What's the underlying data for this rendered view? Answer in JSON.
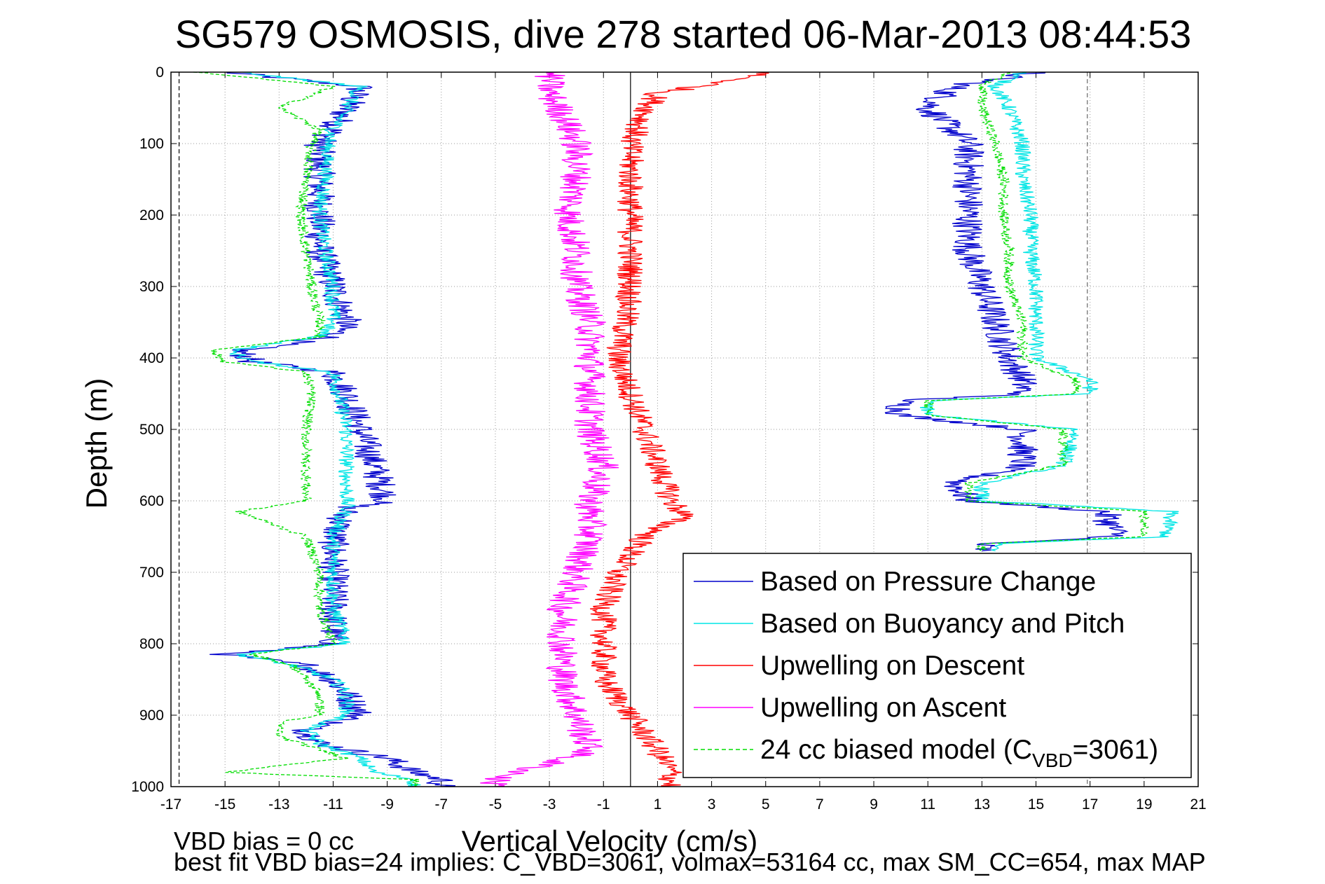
{
  "chart_data": {
    "type": "line",
    "title": "SG579 OSMOSIS, dive 278 started 06-Mar-2013 08:44:53",
    "xlabel": "Vertical Velocity (cm/s)",
    "ylabel": "Depth (m)",
    "xlim": [
      -17,
      21
    ],
    "ylim": [
      0,
      1000
    ],
    "y_reversed": true,
    "grid": true,
    "legend_position": "lower-right",
    "x_ticks": [
      "-17",
      "-15",
      "-13",
      "-11",
      "-9",
      "-7",
      "-5",
      "-3",
      "-1",
      "1",
      "3",
      "5",
      "7",
      "9",
      "11",
      "13",
      "15",
      "17",
      "19",
      "21"
    ],
    "y_ticks": [
      "0",
      "100",
      "200",
      "300",
      "400",
      "500",
      "600",
      "700",
      "800",
      "900",
      "1000"
    ],
    "reference_lines": [
      {
        "x": -16.7,
        "style": "dashed",
        "color": "#000000"
      },
      {
        "x": 16.9,
        "style": "dashed",
        "color": "#666666"
      },
      {
        "x": 0,
        "style": "solid",
        "color": "#000000"
      }
    ],
    "series": [
      {
        "name": "Based on Pressure Change",
        "color": "#0000cc",
        "style": "solid",
        "descent": {
          "depth": [
            0,
            20,
            50,
            80,
            100,
            150,
            200,
            250,
            300,
            350,
            370,
            390,
            405,
            420,
            450,
            500,
            550,
            600,
            610,
            650,
            700,
            750,
            800,
            815,
            830,
            850,
            870,
            900,
            920,
            940,
            960,
            980,
            990,
            1000
          ],
          "value": [
            -15,
            -10,
            -10.5,
            -11,
            -11.5,
            -11.5,
            -11.5,
            -11.5,
            -11,
            -10.5,
            -11,
            -14.5,
            -14,
            -11,
            -10.5,
            -10,
            -9.5,
            -9,
            -10.5,
            -11,
            -11,
            -11,
            -11,
            -15,
            -12,
            -11,
            -10.5,
            -10,
            -12,
            -11.5,
            -9,
            -8,
            -7,
            -7
          ],
          "jitter": 0.6
        },
        "ascent": {
          "depth": [
            0,
            20,
            50,
            100,
            150,
            200,
            250,
            300,
            350,
            400,
            430,
            450,
            460,
            480,
            500,
            550,
            575,
            600,
            615,
            650,
            660,
            670
          ],
          "value": [
            15,
            12,
            11,
            12.5,
            12.5,
            12.5,
            12.5,
            13,
            13.5,
            14,
            14.5,
            14.5,
            10,
            10,
            14.5,
            14.5,
            12,
            12.5,
            17.5,
            18,
            13,
            13
          ],
          "jitter": 0.6
        }
      },
      {
        "name": "Based on Buoyancy and Pitch",
        "color": "#00e5e5",
        "style": "solid",
        "descent": {
          "depth": [
            0,
            20,
            50,
            80,
            100,
            150,
            200,
            250,
            300,
            350,
            370,
            390,
            405,
            420,
            450,
            500,
            550,
            600,
            610,
            650,
            700,
            750,
            800,
            815,
            830,
            850,
            870,
            900,
            920,
            940,
            960,
            980,
            990,
            1000
          ],
          "value": [
            -14.5,
            -10,
            -10.5,
            -11,
            -11.2,
            -11.3,
            -11.5,
            -11.3,
            -11,
            -11,
            -11.5,
            -14.8,
            -14,
            -11,
            -10.8,
            -10.5,
            -10.5,
            -10.5,
            -10.5,
            -11,
            -11,
            -11,
            -10.5,
            -14.5,
            -12.5,
            -11,
            -10.5,
            -10.5,
            -12,
            -11.5,
            -10,
            -9.5,
            -8,
            -8
          ],
          "jitter": 0.3
        },
        "ascent": {
          "depth": [
            0,
            20,
            50,
            100,
            150,
            200,
            250,
            300,
            350,
            400,
            430,
            450,
            460,
            480,
            500,
            550,
            575,
            600,
            615,
            650,
            660,
            670
          ],
          "value": [
            14.5,
            13.5,
            14,
            14.5,
            14.5,
            14.8,
            14.8,
            15,
            15,
            15,
            17,
            17,
            11,
            11,
            16.5,
            16,
            13,
            13,
            20,
            19.8,
            13.5,
            13.5
          ],
          "jitter": 0.3
        }
      },
      {
        "name": "Upwelling on Descent",
        "color": "#ff0000",
        "style": "solid",
        "descent": {
          "depth": [
            0,
            10,
            30,
            60,
            100,
            150,
            200,
            250,
            300,
            350,
            400,
            450,
            500,
            550,
            600,
            620,
            650,
            700,
            750,
            800,
            850,
            900,
            950,
            980,
            1000
          ],
          "value": [
            5,
            4,
            1,
            0.5,
            0,
            0,
            0,
            0,
            0,
            -0.2,
            -0.5,
            0,
            0.5,
            1,
            1.5,
            2,
            0.5,
            -0.5,
            -1,
            -1,
            -1,
            0,
            1,
            1.5,
            1.5
          ],
          "jitter": 0.5
        }
      },
      {
        "name": "Upwelling on Ascent",
        "color": "#ff00ff",
        "style": "solid",
        "descent": {
          "depth": [
            0,
            30,
            60,
            100,
            150,
            200,
            250,
            300,
            350,
            400,
            450,
            500,
            550,
            600,
            650,
            700,
            750,
            800,
            850,
            900,
            950,
            990,
            1000
          ],
          "value": [
            -3,
            -3,
            -2.5,
            -2,
            -2,
            -2.3,
            -2,
            -2,
            -1.5,
            -1.5,
            -1.5,
            -1.5,
            -1,
            -1.5,
            -1.5,
            -2,
            -2.5,
            -2.5,
            -2.5,
            -2,
            -1.5,
            -5,
            -5
          ],
          "jitter": 0.6
        }
      },
      {
        "name": "24 cc biased model (C_VBD=3061)",
        "color": "#00dd00",
        "style": "dashed",
        "descent": {
          "depth": [
            0,
            20,
            50,
            80,
            100,
            150,
            200,
            250,
            300,
            350,
            370,
            390,
            405,
            420,
            450,
            500,
            550,
            600,
            615,
            650,
            700,
            750,
            800,
            815,
            830,
            850,
            870,
            900,
            910,
            930,
            960,
            980,
            990,
            1000
          ],
          "value": [
            -16,
            -11,
            -13,
            -11.5,
            -11.8,
            -12,
            -12.2,
            -12,
            -11.8,
            -11.5,
            -11.5,
            -15.5,
            -15,
            -12,
            -11.8,
            -12,
            -12,
            -12,
            -14.5,
            -12,
            -11.5,
            -11.5,
            -11,
            -14,
            -12.5,
            -12,
            -11.5,
            -11.5,
            -13,
            -13,
            -10.5,
            -15,
            -8,
            -8
          ],
          "jitter": 0.2
        },
        "ascent": {
          "depth": [
            0,
            20,
            50,
            100,
            150,
            200,
            250,
            300,
            350,
            400,
            430,
            450,
            460,
            480,
            500,
            550,
            575,
            600,
            615,
            650,
            660,
            670
          ],
          "value": [
            14,
            13,
            13,
            13.5,
            13.8,
            13.8,
            14,
            14,
            14.5,
            14.5,
            16.5,
            16.5,
            11,
            11,
            16,
            16,
            12.5,
            12.5,
            19,
            19,
            13,
            13
          ],
          "jitter": 0.2
        }
      }
    ],
    "legend": [
      {
        "label": "Based on Pressure Change",
        "color": "#0000cc",
        "dash": false
      },
      {
        "label": "Based on Buoyancy and Pitch",
        "color": "#00e5e5",
        "dash": false
      },
      {
        "label": "Upwelling on Descent",
        "color": "#ff0000",
        "dash": false
      },
      {
        "label": "Upwelling on Ascent",
        "color": "#ff00ff",
        "dash": false
      },
      {
        "label_main": "24 cc biased model (C",
        "label_sub": "VBD",
        "label_tail": "=3061)",
        "color": "#00dd00",
        "dash": true
      }
    ],
    "annotations": {
      "vbd_bias": "VBD bias = 0 cc",
      "best_fit": "best fit VBD bias=24 implies: C_VBD=3061, volmax=53164 cc, max SM_CC=654, max MAP"
    }
  }
}
